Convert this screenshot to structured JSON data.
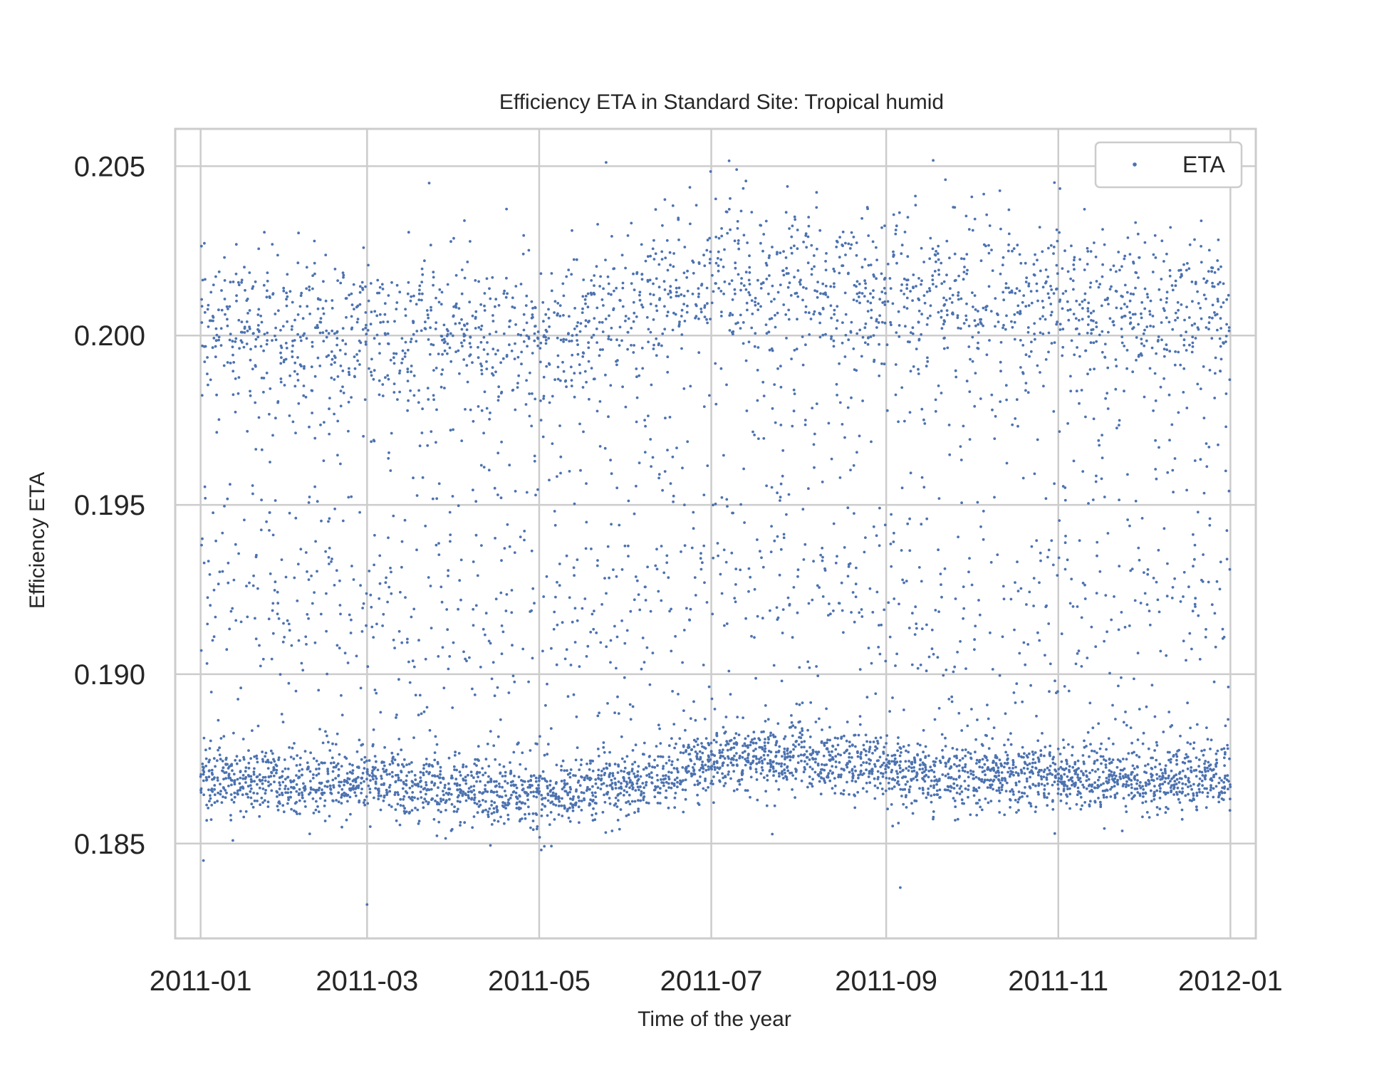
{
  "chart_data": {
    "type": "scatter",
    "title": "Efficiency ETA in Standard Site: Tropical humid",
    "xlabel": "Time of the year",
    "ylabel": "Efficiency ETA",
    "x_start": "2011-01-01",
    "x_end": "2012-01-01",
    "xlim": [
      "2010-12-23",
      "2012-01-10"
    ],
    "ylim": [
      0.1822,
      0.2061
    ],
    "x_ticks": [
      "2011-01",
      "2011-03",
      "2011-05",
      "2011-07",
      "2011-09",
      "2011-11",
      "2012-01"
    ],
    "x_tick_dates": [
      "2011-01-01",
      "2011-03-01",
      "2011-05-01",
      "2011-07-01",
      "2011-09-01",
      "2011-11-01",
      "2012-01-01"
    ],
    "y_ticks": [
      0.185,
      0.19,
      0.195,
      0.2,
      0.205
    ],
    "y_tick_labels": [
      "0.185",
      "0.190",
      "0.195",
      "0.200",
      "0.205"
    ],
    "grid": true,
    "legend_position": "top-right",
    "series": [
      {
        "name": "ETA",
        "color": "#4c72b0",
        "marker": "point",
        "sampling": "hourly",
        "monthly_baseline": {
          "months": [
            "2011-01",
            "2011-02",
            "2011-03",
            "2011-04",
            "2011-05",
            "2011-06",
            "2011-07",
            "2011-08",
            "2011-09",
            "2011-10",
            "2011-11",
            "2011-12"
          ],
          "values": [
            0.1869,
            0.1868,
            0.1868,
            0.1866,
            0.1864,
            0.1868,
            0.1874,
            0.1876,
            0.1871,
            0.1869,
            0.187,
            0.1869
          ]
        },
        "monthly_upper_band": {
          "months": [
            "2011-01",
            "2011-02",
            "2011-03",
            "2011-04",
            "2011-05",
            "2011-06",
            "2011-07",
            "2011-08",
            "2011-09",
            "2011-10",
            "2011-11",
            "2011-12"
          ],
          "values": [
            0.2005,
            0.2003,
            0.2002,
            0.2002,
            0.2,
            0.201,
            0.2018,
            0.2016,
            0.2015,
            0.2012,
            0.2012,
            0.2008
          ]
        },
        "notable_points": [
          {
            "x": "2011-07-10",
            "y": 0.2049
          },
          {
            "x": "2011-03-23",
            "y": 0.2045
          },
          {
            "x": "2011-09-22",
            "y": 0.2046
          },
          {
            "x": "2011-07-28",
            "y": 0.2044
          },
          {
            "x": "2011-03-01",
            "y": 0.1832
          },
          {
            "x": "2011-01-02",
            "y": 0.1845
          },
          {
            "x": "2011-07-26",
            "y": 0.1898
          },
          {
            "x": "2011-09-06",
            "y": 0.1837
          }
        ]
      }
    ]
  }
}
